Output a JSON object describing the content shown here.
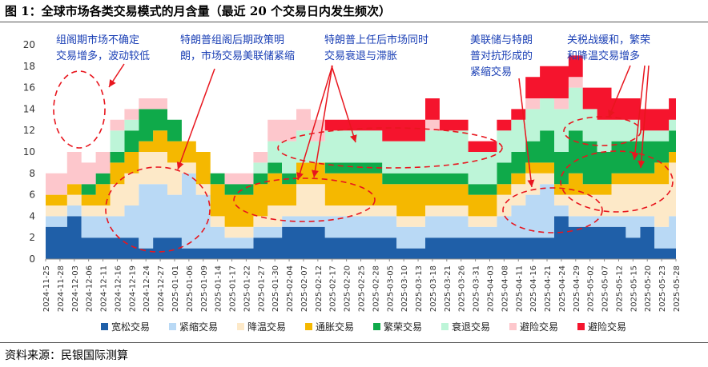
{
  "header": {
    "title": "图 1：全球市场各类交易模式的月含量（最近 20 个交易日内发生频次）"
  },
  "footer": {
    "source": "资料来源：民银国际测算"
  },
  "chart_data": {
    "type": "area",
    "stacked": true,
    "ylim": [
      0,
      20
    ],
    "yticks": [
      0,
      2,
      4,
      6,
      8,
      10,
      12,
      14,
      16,
      18,
      20
    ],
    "grid": false,
    "legend_position": "bottom",
    "x_tick_labels": [
      "2024-11-25",
      "2024-11-28",
      "2024-12-03",
      "2024-12-06",
      "2024-12-11",
      "2024-12-16",
      "2024-12-19",
      "2024-12-24",
      "2024-12-27",
      "2025-01-01",
      "2025-01-06",
      "2025-01-09",
      "2025-01-14",
      "2025-01-17",
      "2025-01-22",
      "2025-01-27",
      "2025-01-30",
      "2025-02-04",
      "2025-02-07",
      "2025-02-12",
      "2025-02-17",
      "2025-02-20",
      "2025-02-25",
      "2025-02-28",
      "2025-03-05",
      "2025-03-10",
      "2025-03-13",
      "2025-03-18",
      "2025-03-21",
      "2025-03-26",
      "2025-03-31",
      "2025-04-03",
      "2025-04-08",
      "2025-04-11",
      "2025-04-16",
      "2025-04-21",
      "2025-04-24",
      "2025-04-29",
      "2025-05-02",
      "2025-05-07",
      "2025-05-12",
      "2025-05-15",
      "2025-05-20",
      "2025-05-23",
      "2025-05-28"
    ],
    "series": [
      {
        "name": "宽松交易",
        "color": "#1f5fa8",
        "values": [
          3,
          3,
          4,
          2,
          2,
          2,
          2,
          1,
          2,
          2,
          1,
          1,
          1,
          1,
          1,
          2,
          2,
          3,
          3,
          3,
          2,
          2,
          2,
          2,
          2,
          1,
          1,
          2,
          2,
          2,
          2,
          2,
          2,
          2,
          2,
          2,
          4,
          3,
          3,
          3,
          3,
          2,
          3,
          1,
          1
        ]
      },
      {
        "name": "紧缩交易",
        "color": "#b9d9f5",
        "values": [
          1,
          1,
          1,
          2,
          2,
          2,
          3,
          6,
          5,
          4,
          7,
          5,
          2,
          1,
          1,
          1,
          1,
          1,
          1,
          1,
          2,
          2,
          2,
          2,
          2,
          2,
          2,
          2,
          2,
          2,
          1,
          1,
          2,
          3,
          4,
          5,
          1,
          1,
          1,
          1,
          1,
          2,
          1,
          2,
          3
        ]
      },
      {
        "name": "降温交易",
        "color": "#fde9c8",
        "values": [
          1,
          1,
          1,
          1,
          1,
          3,
          3,
          3,
          3,
          3,
          1,
          1,
          1,
          1,
          1,
          1,
          2,
          1,
          3,
          3,
          1,
          1,
          1,
          1,
          1,
          1,
          1,
          1,
          1,
          1,
          1,
          1,
          2,
          2,
          2,
          1,
          1,
          2,
          2,
          2,
          3,
          3,
          3,
          4,
          5
        ]
      },
      {
        "name": "通胀交易",
        "color": "#f5b800",
        "values": [
          1,
          1,
          1,
          1,
          2,
          2,
          2,
          1,
          2,
          2,
          2,
          3,
          3,
          3,
          3,
          3,
          3,
          2,
          2,
          2,
          3,
          3,
          3,
          3,
          2,
          3,
          3,
          2,
          2,
          2,
          2,
          2,
          1,
          1,
          1,
          1,
          1,
          2,
          1,
          1,
          1,
          1,
          1,
          2,
          1
        ]
      },
      {
        "name": "繁荣交易",
        "color": "#0faa4a",
        "values": [
          0,
          0,
          0,
          1,
          1,
          1,
          2,
          3,
          2,
          2,
          0,
          0,
          1,
          1,
          1,
          1,
          1,
          1,
          0,
          0,
          1,
          1,
          1,
          1,
          1,
          1,
          1,
          1,
          1,
          1,
          1,
          1,
          2,
          2,
          2,
          3,
          3,
          4,
          4,
          3,
          3,
          3,
          3,
          2,
          2
        ]
      },
      {
        "name": "衰退交易",
        "color": "#bdf5d8",
        "values": [
          0,
          0,
          0,
          0,
          0,
          2,
          1,
          0,
          0,
          0,
          0,
          0,
          0,
          0,
          0,
          1,
          2,
          3,
          3,
          2,
          3,
          3,
          3,
          3,
          3,
          3,
          3,
          4,
          4,
          4,
          3,
          3,
          3,
          3,
          3,
          3,
          4,
          4,
          3,
          3,
          2,
          2,
          1,
          1,
          1
        ]
      },
      {
        "name": "避险交易",
        "color": "#fdc7cc",
        "values": [
          2,
          2,
          3,
          2,
          2,
          1,
          1,
          1,
          1,
          0,
          0,
          0,
          0,
          1,
          1,
          1,
          2,
          2,
          2,
          2,
          0,
          0,
          0,
          0,
          0,
          0,
          0,
          1,
          0,
          0,
          0,
          0,
          0,
          0,
          1,
          0,
          1,
          1,
          0,
          0,
          0,
          0,
          0,
          0,
          0
        ]
      },
      {
        "name": "避险交易",
        "color": "#f5142d",
        "values": [
          0,
          0,
          0,
          0,
          0,
          0,
          0,
          0,
          0,
          0,
          0,
          0,
          0,
          0,
          0,
          0,
          0,
          0,
          0,
          0,
          1,
          1,
          1,
          1,
          2,
          2,
          2,
          2,
          1,
          1,
          1,
          1,
          1,
          1,
          2,
          3,
          3,
          2,
          2,
          3,
          2,
          2,
          2,
          2,
          2
        ]
      }
    ],
    "annotations": [
      {
        "lines": [
          "组阁期市场不确定",
          "交易增多，波动较低"
        ]
      },
      {
        "lines": [
          "特朗普组阁后期政策明",
          "朗，市场交易美联储紧缩"
        ]
      },
      {
        "lines": [
          "特朗普上任后市场同时",
          "交易衰退与滞胀"
        ]
      },
      {
        "lines": [
          "美联储与特朗",
          "普对抗形成的",
          "紧缩交易"
        ]
      },
      {
        "lines": [
          "关税战缓和，繁荣",
          "和降温交易增多"
        ]
      }
    ]
  }
}
